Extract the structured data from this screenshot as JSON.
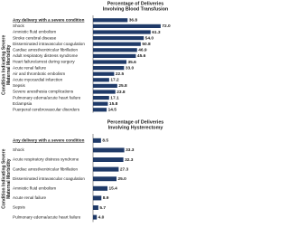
{
  "chart_data": [
    {
      "type": "hbar",
      "title": [
        "Percentage of Deliveries",
        "Involving Blood Transfusion"
      ],
      "ylabel": [
        "Condition Indicating Severe",
        "Maternal Morbidity"
      ],
      "categories": [
        "Any delivery with a severe condition",
        "Shock",
        "Amniotic fluid embolism",
        "Stroke cerebral disease",
        "Disseminated intravascular coagulation",
        "Cardiac arrest/ventricular fibrillation",
        "Adult respiratory distress syndrome",
        "Heart failure/arrest during surgery",
        "Acute renal failure",
        "Air and thrombotic embolism",
        "Acute myocardial infarction",
        "Sepsis",
        "Severe anesthesia complications",
        "Pulmonary edema/acute heart failure",
        "Eclampsia",
        "Puerperal cerebrovascular disorders"
      ],
      "values": [
        36.8,
        72.0,
        61.3,
        54.0,
        50.8,
        46.9,
        45.6,
        35.6,
        33.0,
        22.5,
        17.2,
        25.8,
        23.8,
        17.1,
        15.8,
        14.5
      ],
      "value_labels": [
        "36.8",
        "72.0",
        "61.3",
        "54.0",
        "50.8",
        "46.9",
        "45.6",
        "35.6",
        "33.0",
        "22.5",
        "17.2",
        "25.8",
        "23.8",
        "17.1",
        "15.8",
        "14.5"
      ],
      "color": "#1f3a68",
      "xlim": [
        0,
        75
      ]
    },
    {
      "type": "hbar",
      "title": [
        "Percentage of Deliveries",
        "Involving Hysterectomy"
      ],
      "ylabel": [
        "Condition Indicating Severe",
        "Maternal Morbidity"
      ],
      "categories": [
        "Any delivery with a severe condition",
        "Shock",
        "Acute respiratory distress syndrome",
        "Cardiac arrest/ventricular fibrillation",
        "Disseminated intravascular coagulation",
        "Amniotic fluid embolism",
        "Acute renal failure",
        "Sepsis",
        "Pulmonary edema/acute heart failure"
      ],
      "values": [
        8.5,
        33.3,
        32.3,
        27.3,
        25.0,
        15.4,
        8.9,
        5.7,
        4.0
      ],
      "value_labels": [
        "8.5",
        "33.3",
        "32.3",
        "27.3",
        "25.0",
        "15.4",
        "8.9",
        "5.7",
        "4.0"
      ],
      "color": "#1f3a68",
      "xlim": [
        0,
        75
      ]
    }
  ]
}
